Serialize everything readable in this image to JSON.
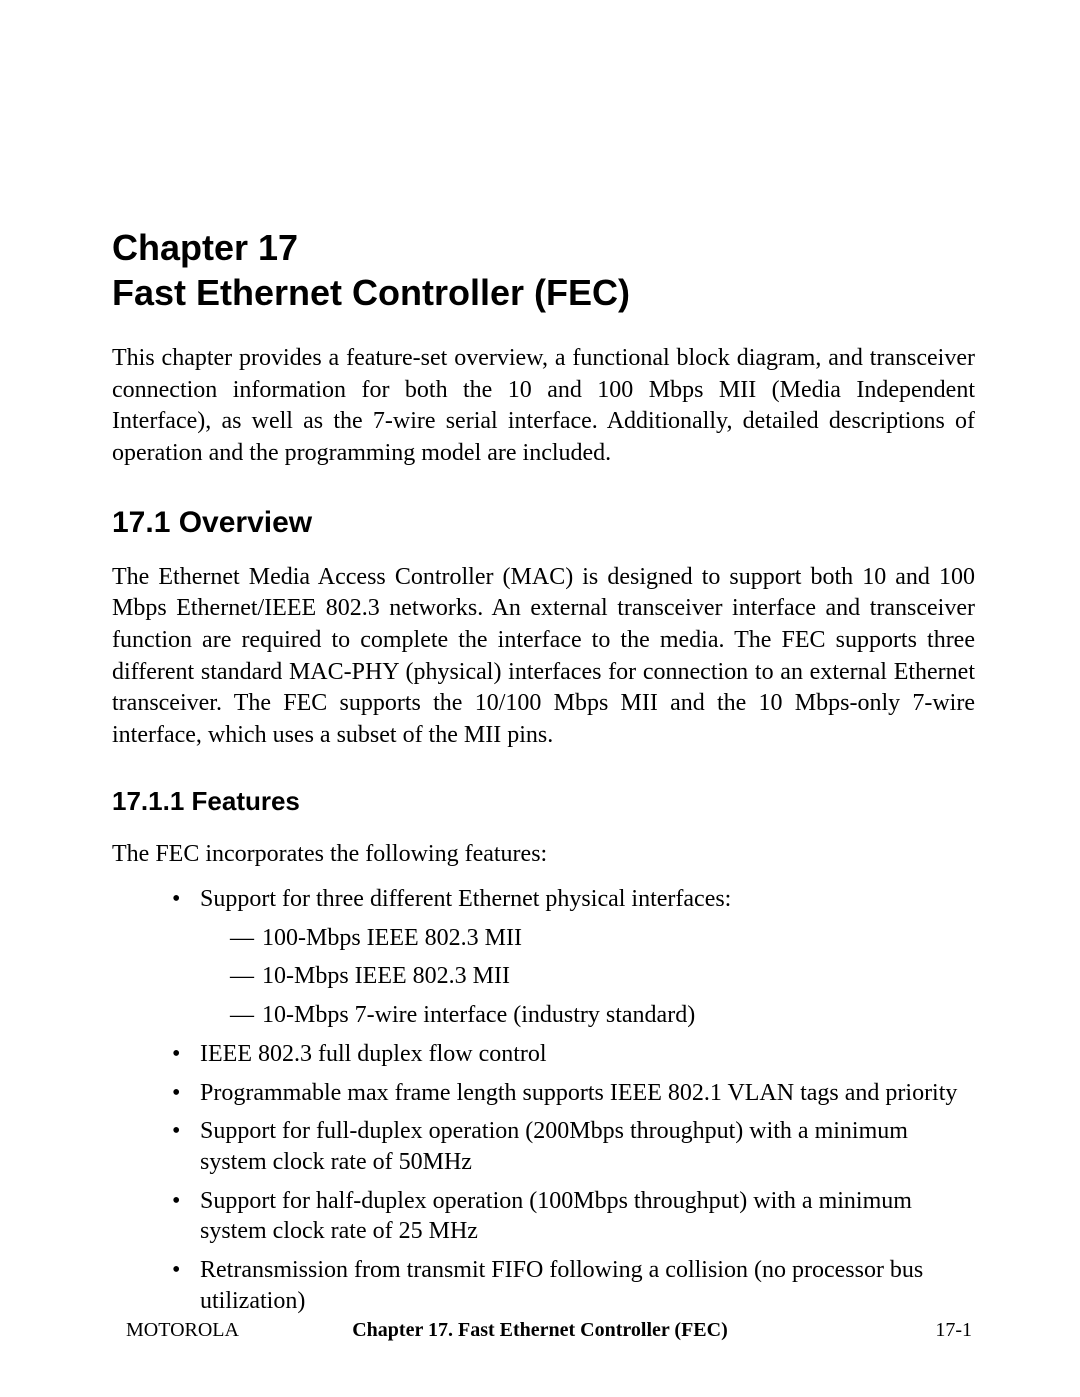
{
  "chapter": {
    "number_line": "Chapter 17",
    "title_line": "Fast Ethernet Controller (FEC)",
    "intro": "This chapter provides a feature-set overview, a functional block diagram, and transceiver connection information for both the 10 and 100 Mbps MII (Media Independent Interface), as well as the 7-wire serial interface. Additionally, detailed descriptions of operation and the programming model are included."
  },
  "section": {
    "heading": "17.1  Overview",
    "para": "The Ethernet Media Access Controller (MAC) is designed to support both 10 and 100 Mbps Ethernet/IEEE 802.3 networks. An external transceiver interface and transceiver function are required to complete the interface to the media. The FEC supports three different standard MAC-PHY (physical) interfaces for connection to an external Ethernet transceiver. The FEC supports the 10/100 Mbps MII and the 10 Mbps-only 7-wire interface, which uses a subset of the MII pins."
  },
  "subsection": {
    "heading": "17.1.1  Features",
    "lead": "The FEC incorporates the following features:",
    "bullets": [
      {
        "text": "Support for three different Ethernet physical interfaces:",
        "sub": [
          "100-Mbps IEEE 802.3 MII",
          "10-Mbps IEEE 802.3 MII",
          "10-Mbps 7-wire interface (industry standard)"
        ]
      },
      {
        "text": "IEEE 802.3 full duplex flow control"
      },
      {
        "text": "Programmable max frame length supports IEEE 802.1 VLAN tags and priority"
      },
      {
        "text": "Support for full-duplex operation (200Mbps throughput) with a minimum system clock rate of 50MHz"
      },
      {
        "text": "Support for half-duplex operation (100Mbps throughput) with a minimum system clock rate of 25 MHz"
      },
      {
        "text": "Retransmission from transmit FIFO following a collision (no processor bus utilization)"
      }
    ]
  },
  "footer": {
    "left": "MOTOROLA",
    "center": "Chapter 17.  Fast Ethernet Controller (FEC)",
    "right": "17-1"
  }
}
